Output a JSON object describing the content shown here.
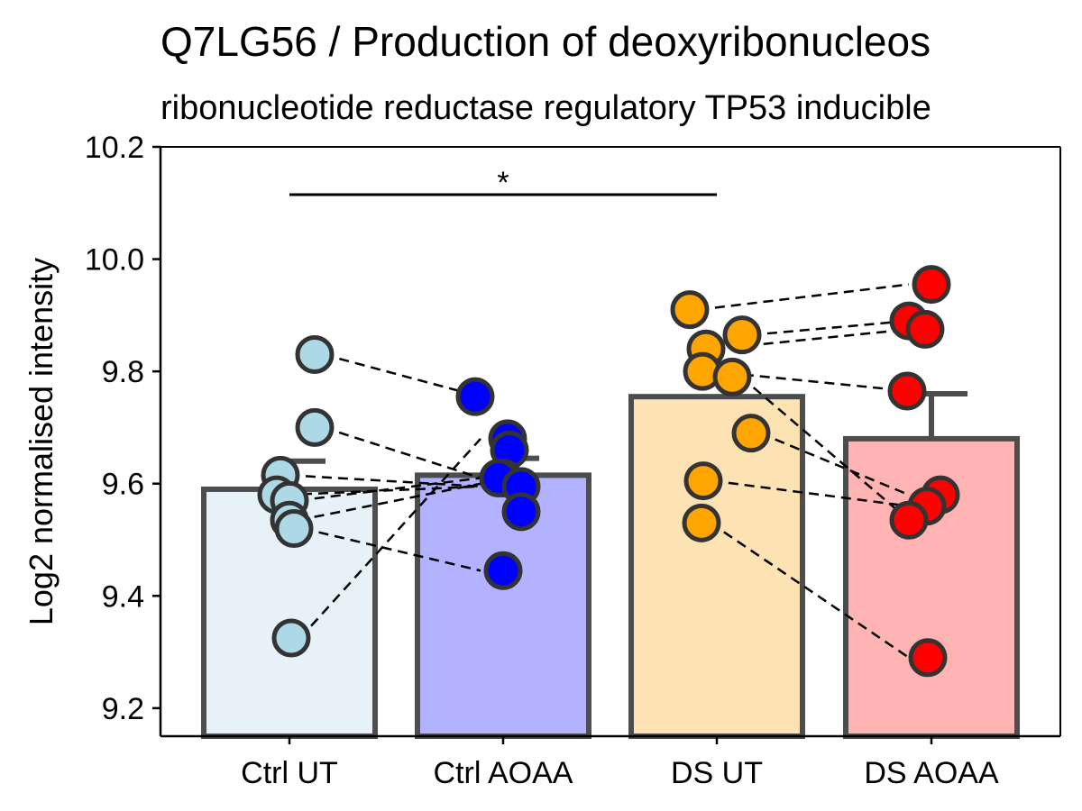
{
  "chart_data": {
    "type": "bar",
    "title": "Q7LG56 / Production of deoxyribonucleos",
    "subtitle": "ribonucleotide reductase regulatory TP53 inducible",
    "xlabel": "",
    "ylabel": "Log2 normalised intensity",
    "ylim": [
      9.15,
      10.2
    ],
    "yticks": [
      "9.2",
      "9.4",
      "9.6",
      "9.8",
      "10.0",
      "10.2"
    ],
    "categories": [
      "Ctrl UT",
      "Ctrl AOAA",
      "DS UT",
      "DS AOAA"
    ],
    "bar_values": [
      9.59,
      9.615,
      9.755,
      9.68
    ],
    "error_upper": [
      9.64,
      9.645,
      9.755,
      9.76
    ],
    "bar_fill_colors": [
      "#E6F1F8",
      "#B2B2FF",
      "#FDE3B3",
      "#FFB3B3"
    ],
    "point_colors": [
      "#ADD8E6",
      "#0000FF",
      "#FFA500",
      "#FF0000"
    ],
    "points": [
      [
        9.83,
        9.7,
        9.615,
        9.58,
        9.57,
        9.535,
        9.52,
        9.325
      ],
      [
        9.755,
        9.68,
        9.66,
        9.61,
        9.61,
        9.595,
        9.55,
        9.445
      ],
      [
        9.91,
        9.865,
        9.84,
        9.8,
        9.79,
        9.69,
        9.605,
        9.53
      ],
      [
        9.955,
        9.89,
        9.875,
        9.765,
        9.58,
        9.56,
        9.535,
        9.29
      ]
    ],
    "pairs": [
      {
        "from": 0,
        "to": 1,
        "y1": [
          9.83,
          9.7,
          9.615,
          9.58,
          9.57,
          9.535,
          9.52,
          9.325
        ],
        "y2": [
          9.755,
          9.61,
          9.595,
          9.595,
          9.61,
          9.6,
          9.445,
          9.68
        ]
      },
      {
        "from": 2,
        "to": 3,
        "y1": [
          9.91,
          9.865,
          9.84,
          9.8,
          9.79,
          9.69,
          9.605,
          9.53
        ],
        "y2": [
          9.955,
          9.89,
          9.875,
          9.765,
          9.535,
          9.58,
          9.56,
          9.29
        ]
      }
    ],
    "significance": [
      {
        "from": 0,
        "to": 2,
        "y": 10.115,
        "label": "*"
      }
    ],
    "grid": false,
    "legend": "none"
  }
}
